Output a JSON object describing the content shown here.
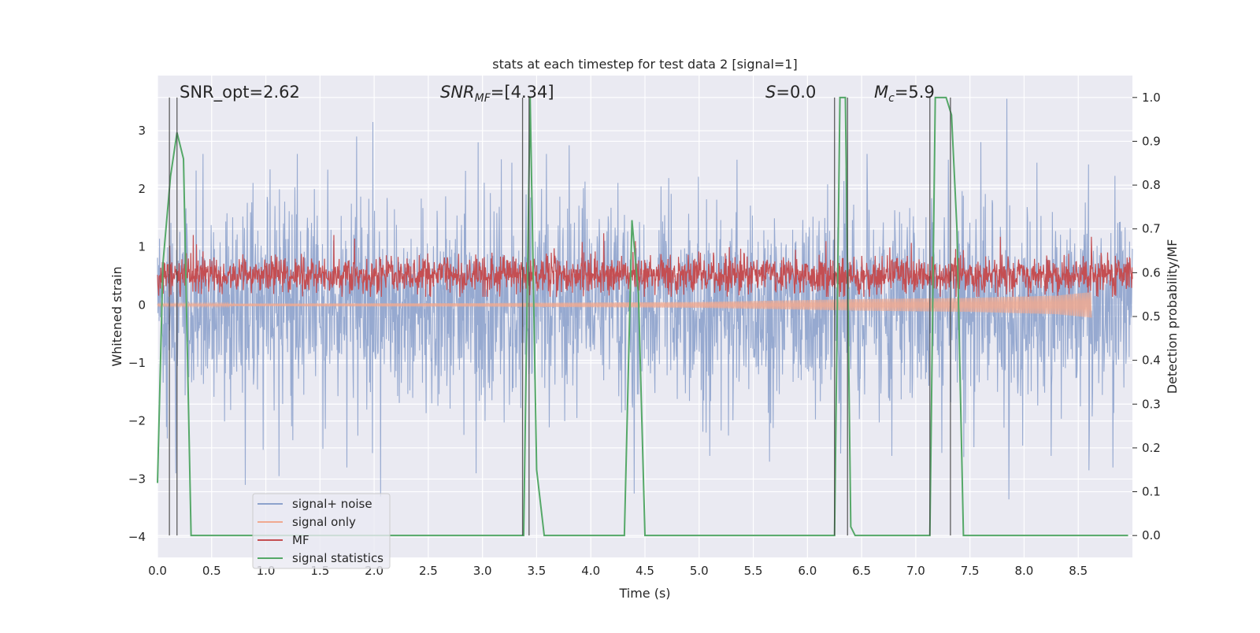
{
  "chart_data": {
    "type": "line",
    "title": "stats at each timestep for test data 2 [signal=1]",
    "xlabel": "Time (s)",
    "ylabel_left": "Whitened strain",
    "ylabel_right": "Detection probability/MF",
    "xlim": [
      0.0,
      9.0
    ],
    "ylim_left": [
      -4.35,
      3.95
    ],
    "ylim_right": [
      -0.05,
      1.05
    ],
    "x_ticks": [
      "0.0",
      "0.5",
      "1.0",
      "1.5",
      "2.0",
      "2.5",
      "3.0",
      "3.5",
      "4.0",
      "4.5",
      "5.0",
      "5.5",
      "6.0",
      "6.5",
      "7.0",
      "7.5",
      "8.0",
      "8.5"
    ],
    "y_left_ticks": [
      "3",
      "2",
      "1",
      "0",
      "−1",
      "−2",
      "−3",
      "−4"
    ],
    "y_right_ticks": [
      "1.0",
      "0.9",
      "0.8",
      "0.7",
      "0.6",
      "0.5",
      "0.4",
      "0.3",
      "0.2",
      "0.1",
      "0.0"
    ],
    "grid": true,
    "legend_position": "lower-left",
    "annotations": [
      {
        "id": "snr-opt",
        "text": "SNR_opt=2.62",
        "x": 0.2
      },
      {
        "id": "snr-mf",
        "text": "[4.34]",
        "x": 2.6
      },
      {
        "id": "s",
        "text": "=0.0",
        "x": 5.6
      },
      {
        "id": "mc",
        "text": "=5.9",
        "x": 6.6
      }
    ],
    "vertical_lines_x": [
      0.11,
      0.18,
      3.37,
      3.43,
      6.25,
      6.37,
      7.13,
      7.32
    ],
    "series": [
      {
        "name": "signal+ noise",
        "axis": "left",
        "color": "#8da2cc",
        "noise_std": 0.85,
        "spikes": [
          [
            0.42,
            2.6
          ],
          [
            0.88,
            2.1
          ],
          [
            1.29,
            2.6
          ],
          [
            1.84,
            2.9
          ],
          [
            1.99,
            3.15
          ],
          [
            2.96,
            2.8
          ],
          [
            3.27,
            2.45
          ],
          [
            3.59,
            2.6
          ],
          [
            3.8,
            2.75
          ],
          [
            4.25,
            2.1
          ],
          [
            5.35,
            2.5
          ],
          [
            6.55,
            2.6
          ],
          [
            7.3,
            2.5
          ],
          [
            7.84,
            3.55
          ],
          [
            8.12,
            2.45
          ],
          [
            0.09,
            -2.3
          ],
          [
            0.17,
            -2.9
          ],
          [
            0.81,
            -3.1
          ],
          [
            1.12,
            -2.95
          ],
          [
            1.75,
            -2.8
          ],
          [
            2.06,
            -3.3
          ],
          [
            2.94,
            -2.9
          ],
          [
            4.4,
            -3.25
          ],
          [
            5.1,
            -2.6
          ],
          [
            5.65,
            -2.7
          ],
          [
            6.78,
            -2.6
          ],
          [
            7.24,
            -2.55
          ],
          [
            7.86,
            -3.35
          ],
          [
            8.25,
            -2.6
          ],
          [
            8.6,
            -2.85
          ],
          [
            8.82,
            -2.8
          ]
        ]
      },
      {
        "name": "signal only",
        "axis": "left",
        "color": "#f0a990",
        "envelope": [
          [
            0.0,
            0.02
          ],
          [
            3.0,
            0.03
          ],
          [
            5.0,
            0.05
          ],
          [
            6.5,
            0.1
          ],
          [
            7.5,
            0.12
          ],
          [
            8.3,
            0.16
          ],
          [
            8.62,
            0.22
          ]
        ]
      },
      {
        "name": "MF",
        "axis": "right",
        "color": "#c44e52",
        "baseline": 0.595,
        "noise_std": 0.022,
        "spikes": [
          [
            0.33,
            0.686
          ],
          [
            1.63,
            0.686
          ],
          [
            1.82,
            0.678
          ],
          [
            3.92,
            0.67
          ],
          [
            4.12,
            0.695
          ],
          [
            4.41,
            0.672
          ],
          [
            6.17,
            0.672
          ],
          [
            6.96,
            0.668
          ],
          [
            7.78,
            0.682
          ],
          [
            8.62,
            0.682
          ]
        ]
      },
      {
        "name": "signal statistics",
        "axis": "right",
        "color": "#55a868",
        "x": [
          0.0,
          0.05,
          0.12,
          0.18,
          0.24,
          0.31,
          3.38,
          3.44,
          3.5,
          3.57,
          4.31,
          4.38,
          4.44,
          4.5,
          6.25,
          6.3,
          6.35,
          6.4,
          6.44,
          7.13,
          7.18,
          7.28,
          7.33,
          7.38,
          7.44,
          8.96
        ],
        "y": [
          0.12,
          0.62,
          0.82,
          0.92,
          0.86,
          0.0,
          0.0,
          1.0,
          0.15,
          0.0,
          0.0,
          0.72,
          0.55,
          0.0,
          0.0,
          1.0,
          1.0,
          0.02,
          0.0,
          0.0,
          1.0,
          1.0,
          0.96,
          0.7,
          0.0,
          0.0
        ]
      }
    ]
  }
}
